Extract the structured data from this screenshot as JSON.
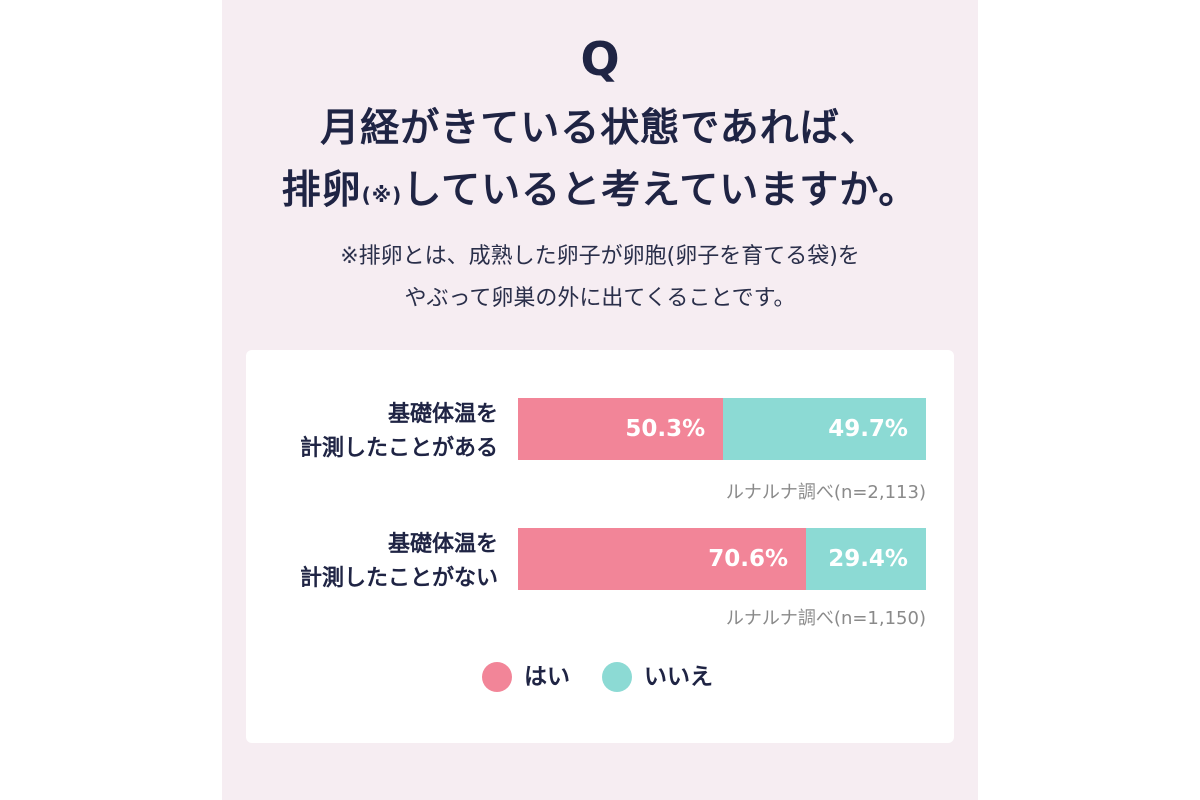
{
  "question": {
    "mark": "Q",
    "line1": "月経がきている状態であれば、",
    "line2_prefix": "排卵",
    "line2_sup": "(※)",
    "line2_suffix": "していると考えていますか。",
    "note_line1": "※排卵とは、成熟した卵子が卵胞(卵子を育てる袋)を",
    "note_line2": "やぶって卵巣の外に出てくることです。"
  },
  "colors": {
    "yes": "#f28598",
    "no": "#8cdad4",
    "panel_bg": "#f6edf2",
    "text": "#1f2444"
  },
  "chart_data": {
    "type": "bar",
    "stacked": true,
    "orientation": "horizontal",
    "categories": [
      {
        "line1": "基礎体温を",
        "line2": "計測したことがある",
        "source": "ルナルナ調べ(n=2,113)"
      },
      {
        "line1": "基礎体温を",
        "line2": "計測したことがない",
        "source": "ルナルナ調べ(n=1,150)"
      }
    ],
    "series": [
      {
        "name": "はい",
        "values": [
          50.3,
          70.6
        ],
        "labels": [
          "50.3%",
          "70.6%"
        ]
      },
      {
        "name": "いいえ",
        "values": [
          49.7,
          29.4
        ],
        "labels": [
          "49.7%",
          "29.4%"
        ]
      }
    ],
    "xlim": [
      0,
      100
    ],
    "legend_placement": "bottom-center"
  }
}
